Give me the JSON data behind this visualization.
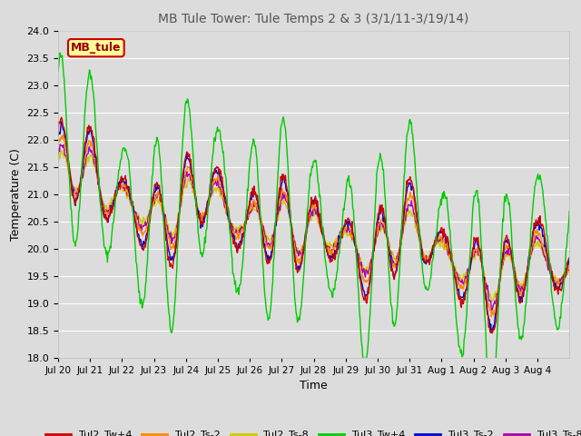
{
  "title": "MB Tule Tower: Tule Temps 2 & 3 (3/1/11-3/19/14)",
  "xlabel": "Time",
  "ylabel": "Temperature (C)",
  "ylim": [
    18.0,
    24.0
  ],
  "yticks": [
    18.0,
    18.5,
    19.0,
    19.5,
    20.0,
    20.5,
    21.0,
    21.5,
    22.0,
    22.5,
    23.0,
    23.5,
    24.0
  ],
  "bg_color": "#dcdcdc",
  "plot_bg_color": "#dcdcdc",
  "grid_color": "#ffffff",
  "legend_label": "MB_tule",
  "series_colors": {
    "Tul2_Tw+4": "#cc0000",
    "Tul2_Ts-2": "#ff8800",
    "Tul2_Ts-8": "#cccc00",
    "Tul3_Tw+4": "#00cc00",
    "Tul3_Ts-2": "#0000cc",
    "Tul3_Ts-8": "#aa00aa"
  },
  "x_tick_labels": [
    "Jul 20",
    "Jul 21",
    "Jul 22",
    "Jul 23",
    "Jul 24",
    "Jul 25",
    "Jul 26",
    "Jul 27",
    "Jul 28",
    "Jul 29",
    "Jul 30",
    "Jul 31",
    "Aug 1",
    "Aug 2",
    "Aug 3",
    "Aug 4"
  ],
  "num_days": 16,
  "seed": 42,
  "figwidth": 6.4,
  "figheight": 4.8,
  "dpi": 100
}
